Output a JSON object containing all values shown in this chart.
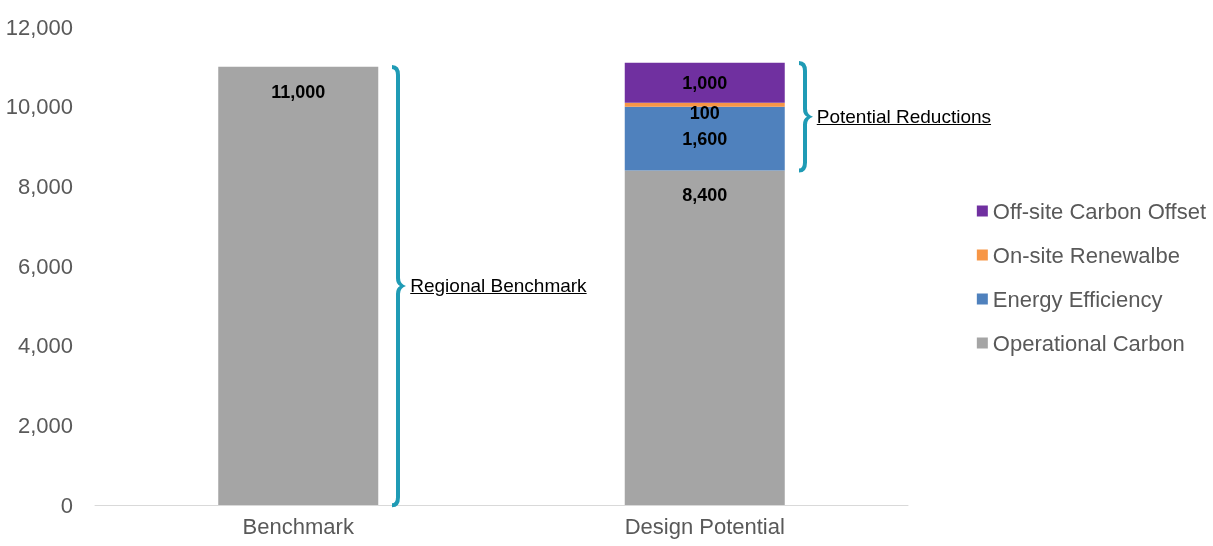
{
  "chart_data": {
    "type": "bar",
    "stacked": true,
    "categories": [
      "Benchmark",
      "Design Potential"
    ],
    "series": [
      {
        "name": "Operational Carbon",
        "color": "#a5a5a5",
        "values": [
          11000,
          8400
        ],
        "value_labels": [
          "11,000",
          "8,400"
        ]
      },
      {
        "name": "Energy Efficiency",
        "color": "#4f81bd",
        "values": [
          null,
          1600
        ],
        "value_labels": [
          null,
          "1,600"
        ]
      },
      {
        "name": "On-site Renewalbe",
        "color": "#f79646",
        "values": [
          null,
          100
        ],
        "value_labels": [
          null,
          "100"
        ]
      },
      {
        "name": "Off-site Carbon Offset",
        "color": "#7030a0",
        "values": [
          null,
          1000
        ],
        "value_labels": [
          null,
          "1,000"
        ]
      }
    ],
    "ylim": [
      0,
      12000
    ],
    "yticks": [
      0,
      {
        "value": 2000,
        "label": "2,000"
      },
      {
        "value": 4000,
        "label": "4,000"
      },
      {
        "value": 6000,
        "label": "6,000"
      },
      {
        "value": 8000,
        "label": "8,000"
      },
      {
        "value": 10000,
        "label": "10,000"
      },
      {
        "value": 12000,
        "label": "12,000"
      }
    ],
    "grid": false,
    "legend": "right",
    "annotations": [
      "Regional Benchmark",
      "Potential Reductions"
    ]
  }
}
